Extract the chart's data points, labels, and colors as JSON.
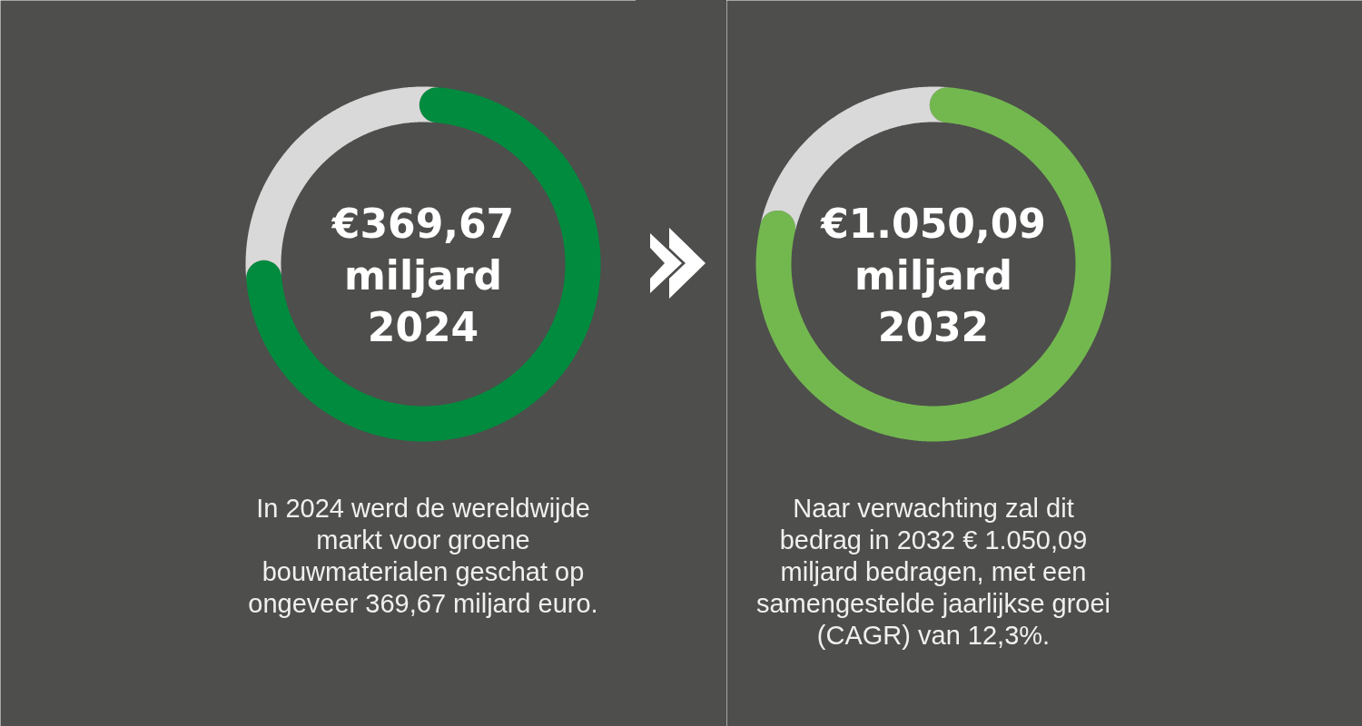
{
  "chart_data": [
    {
      "type": "donut",
      "title": "€369,67 miljard 2024",
      "categories": [
        null,
        null
      ],
      "values": [
        75,
        25
      ],
      "colors": [
        "#008b3e",
        "#d9d9d9"
      ],
      "annotations": [
        "In 2024 werd de wereldwijde markt voor groene bouwmaterialen geschat op ongeveer 369,67 miljard euro."
      ]
    },
    {
      "type": "donut",
      "title": "€1.050,09 miljard 2032",
      "categories": [
        null,
        null
      ],
      "values": [
        80,
        20
      ],
      "colors": [
        "#73b84f",
        "#d9d9d9"
      ],
      "annotations": [
        "Naar verwachting zal dit bedrag in 2032 € 1.050,09 miljard bedragen, met een samengestelde jaarlijkse groei (CAGR) van 12,3%."
      ]
    }
  ]
}
